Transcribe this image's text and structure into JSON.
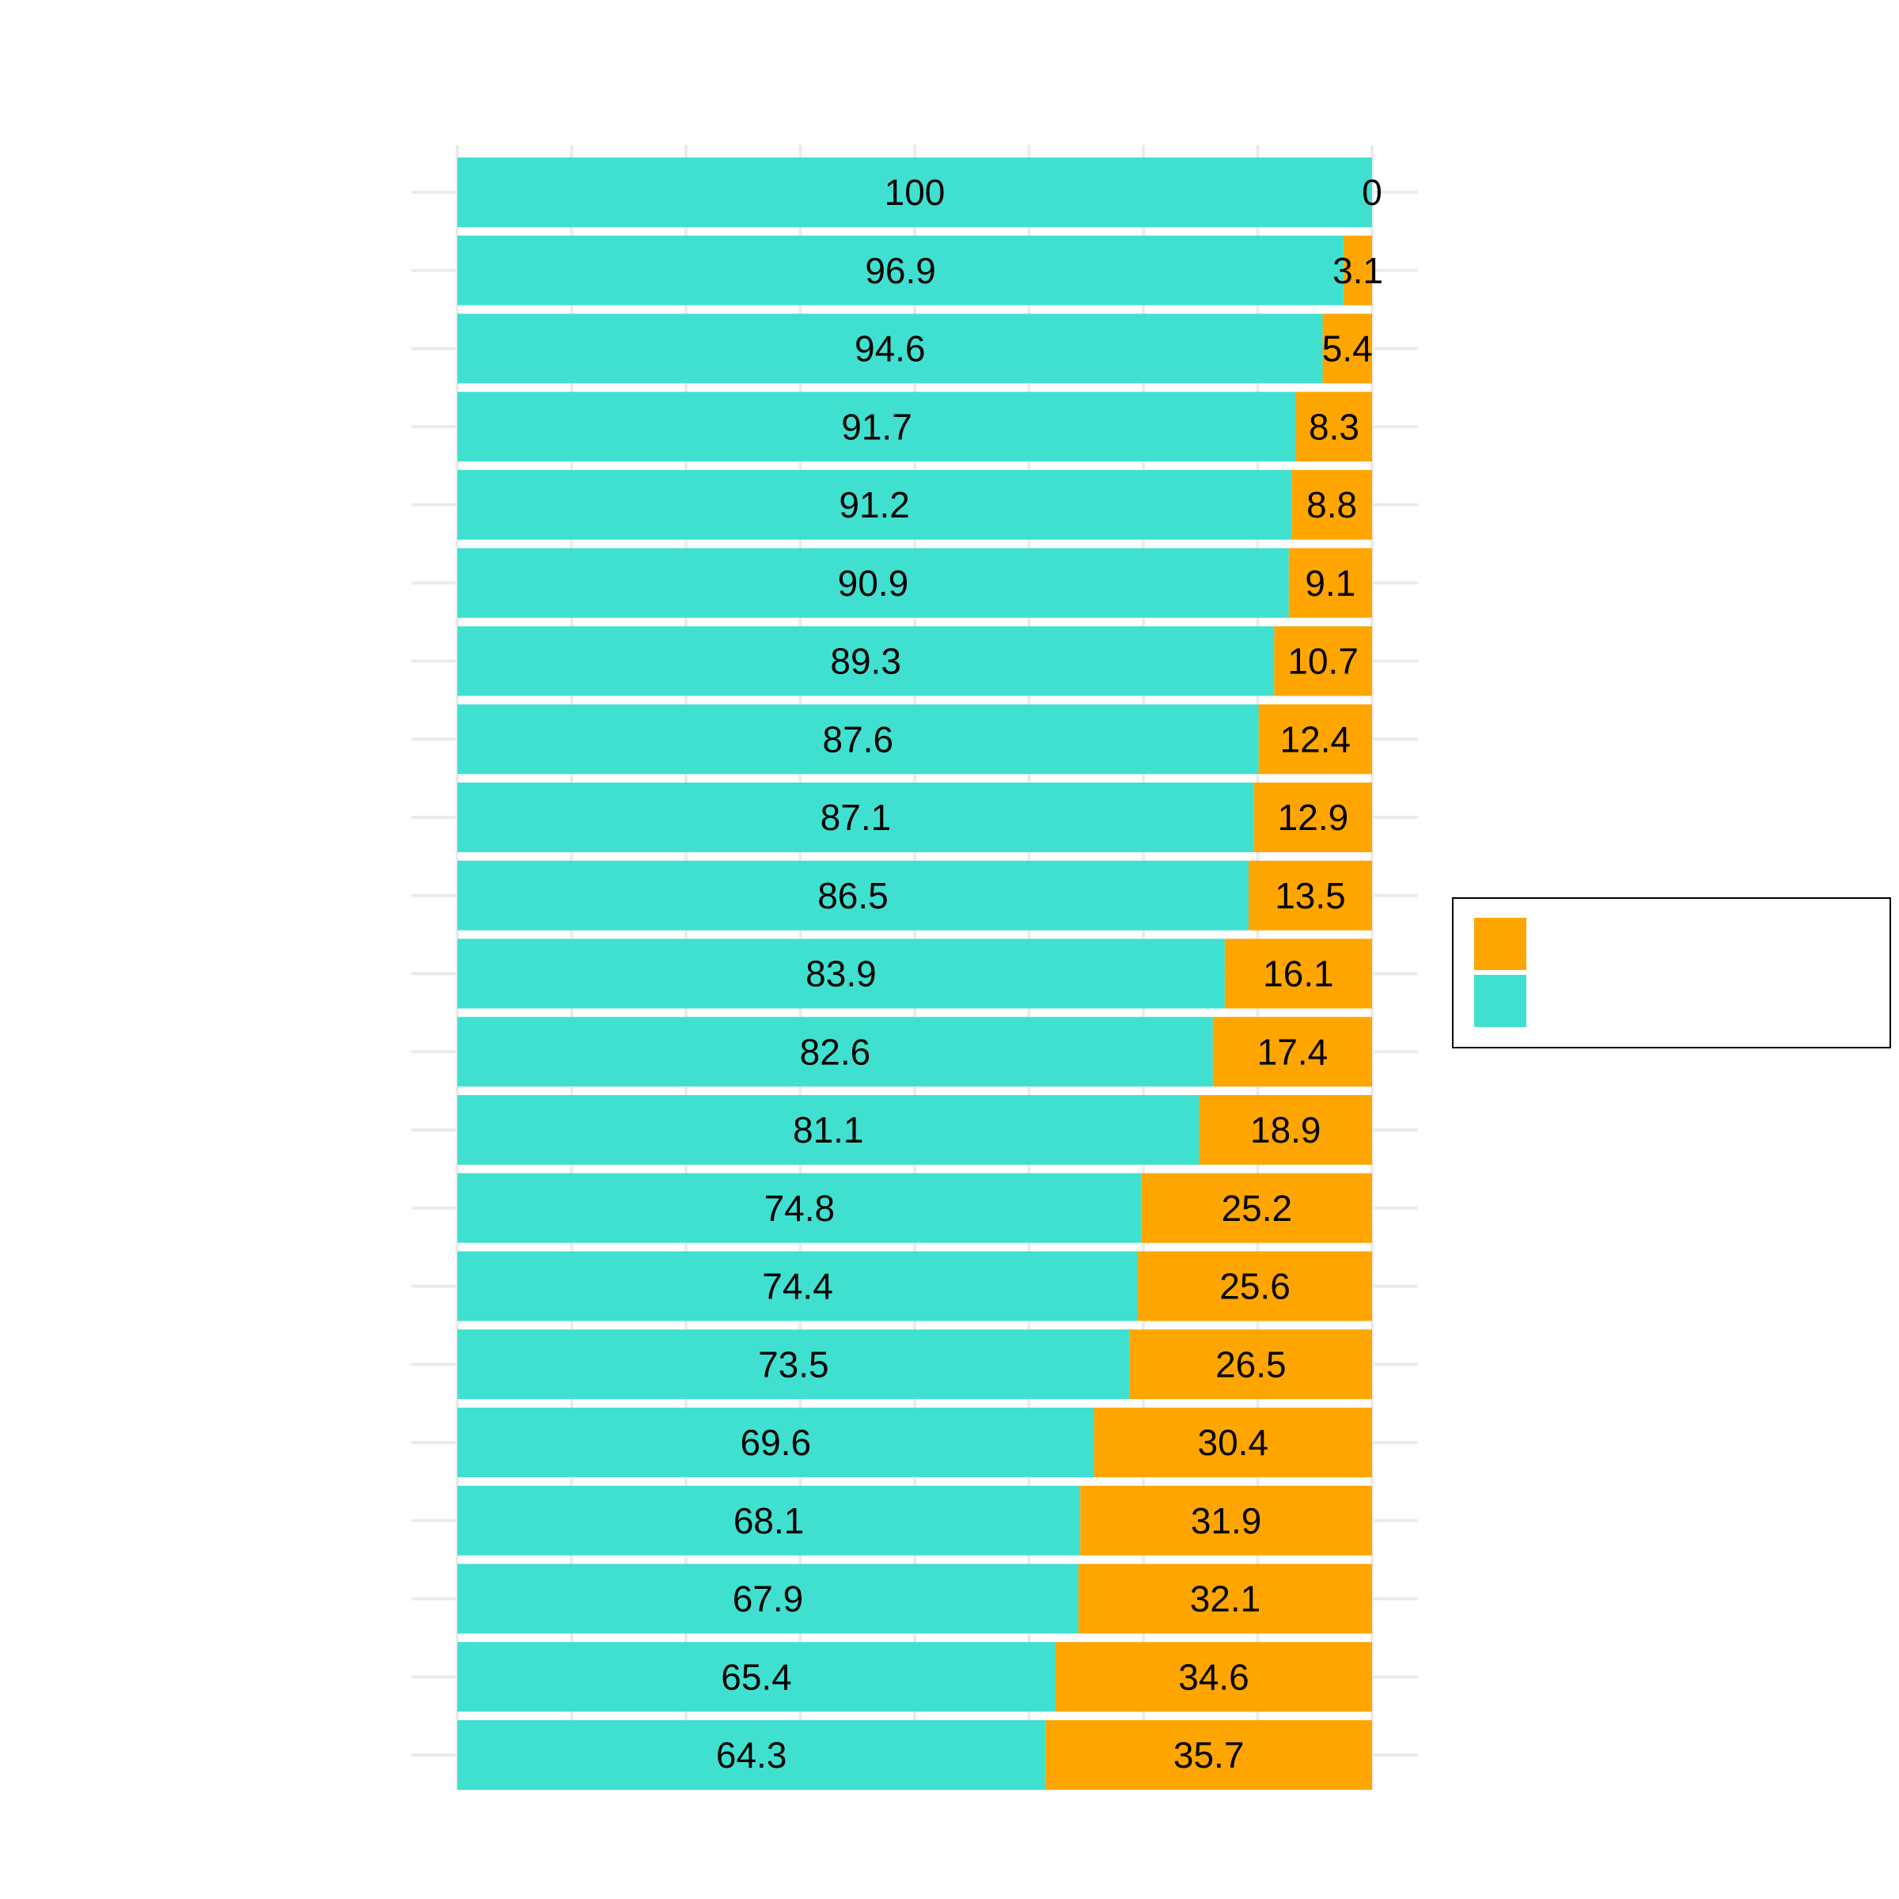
{
  "chart_data": {
    "type": "bar",
    "orientation": "horizontal",
    "stacked": true,
    "percent_stacked": true,
    "xlim": [
      0,
      100
    ],
    "grid": true,
    "legend_position": "right",
    "series": [
      {
        "color": "#40E0D0",
        "values": [
          100,
          96.9,
          94.6,
          91.7,
          91.2,
          90.9,
          89.3,
          87.6,
          87.1,
          86.5,
          83.9,
          82.6,
          81.1,
          74.8,
          74.4,
          73.5,
          69.6,
          68.1,
          67.9,
          65.4,
          64.3
        ],
        "labels": [
          "100",
          "96.9",
          "94.6",
          "91.7",
          "91.2",
          "90.9",
          "89.3",
          "87.6",
          "87.1",
          "86.5",
          "83.9",
          "82.6",
          "81.1",
          "74.8",
          "74.4",
          "73.5",
          "69.6",
          "68.1",
          "67.9",
          "65.4",
          "64.3"
        ]
      },
      {
        "color": "#FFA500",
        "values": [
          0,
          3.1,
          5.4,
          8.3,
          8.8,
          9.1,
          10.7,
          12.4,
          12.9,
          13.5,
          16.1,
          17.4,
          18.9,
          25.2,
          25.6,
          26.5,
          30.4,
          31.9,
          32.1,
          34.6,
          35.7
        ],
        "labels": [
          "0",
          "3.1",
          "5.4",
          "8.3",
          "8.8",
          "9.1",
          "10.7",
          "12.4",
          "12.9",
          "13.5",
          "16.1",
          "17.4",
          "18.9",
          "25.2",
          "25.6",
          "26.5",
          "30.4",
          "31.9",
          "32.1",
          "34.6",
          "35.7"
        ]
      }
    ],
    "legend": [
      {
        "color": "#FFA500"
      },
      {
        "color": "#40E0D0"
      }
    ]
  }
}
